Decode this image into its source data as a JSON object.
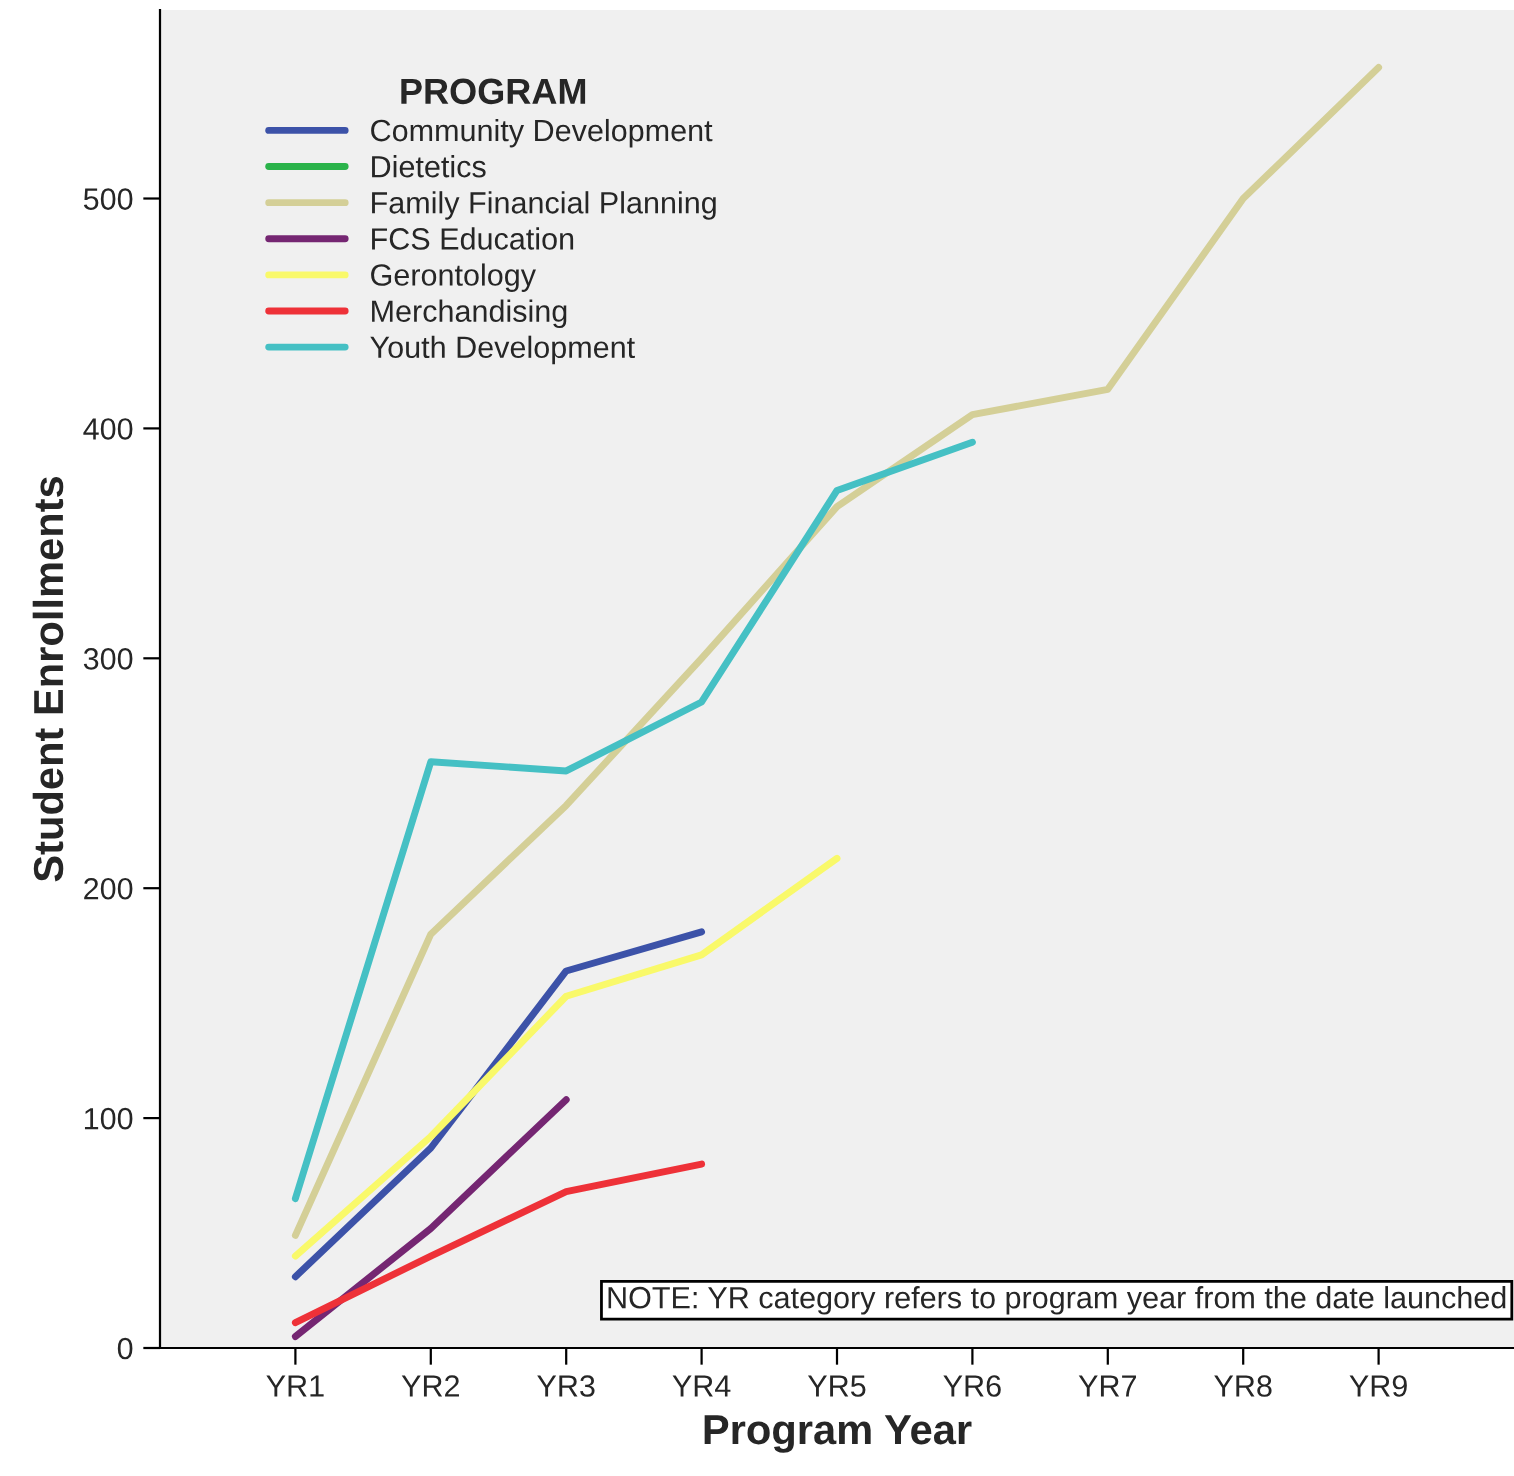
{
  "chart_data": {
    "type": "line",
    "xlabel": "Program Year",
    "ylabel": "Student Enrollments",
    "legend_title": "PROGRAM",
    "categories": [
      "YR1",
      "YR2",
      "YR3",
      "YR4",
      "YR5",
      "YR6",
      "YR7",
      "YR8",
      "YR9"
    ],
    "series": [
      {
        "name": "Community Development",
        "color": "#3c52a8",
        "values": [
          31,
          87,
          164,
          181,
          null,
          null,
          null,
          null,
          null
        ]
      },
      {
        "name": "Dietetics",
        "color": "#2ab34a",
        "values": [
          null,
          null,
          null,
          null,
          null,
          null,
          null,
          null,
          null
        ]
      },
      {
        "name": "Family Financial Planning",
        "color": "#d4cf97",
        "values": [
          49,
          180,
          236,
          300,
          366,
          406,
          417,
          500,
          557
        ]
      },
      {
        "name": "FCS Education",
        "color": "#752672",
        "values": [
          5,
          52,
          108,
          null,
          null,
          null,
          null,
          null,
          null
        ]
      },
      {
        "name": "Gerontology",
        "color": "#f9f96a",
        "values": [
          40,
          92,
          153,
          171,
          213,
          null,
          null,
          null,
          null
        ]
      },
      {
        "name": "Merchandising",
        "color": "#ee3138",
        "values": [
          11,
          40,
          68,
          80,
          null,
          null,
          null,
          null,
          null
        ]
      },
      {
        "name": "Youth Development",
        "color": "#45c0c4",
        "values": [
          65,
          255,
          251,
          281,
          373,
          394,
          null,
          null,
          null
        ]
      }
    ],
    "ylim": [
      0,
      582
    ],
    "yticks": [
      0,
      100,
      200,
      300,
      400,
      500
    ],
    "grid": false,
    "legend": "top left",
    "annotations": [
      "NOTE: YR category refers to program year from the date launched"
    ]
  }
}
